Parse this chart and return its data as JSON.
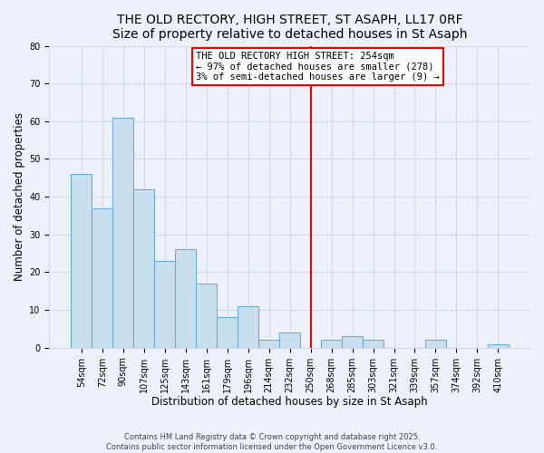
{
  "title_line1": "THE OLD RECTORY, HIGH STREET, ST ASAPH, LL17 0RF",
  "title_line2": "Size of property relative to detached houses in St Asaph",
  "xlabel": "Distribution of detached houses by size in St Asaph",
  "ylabel": "Number of detached properties",
  "bar_labels": [
    "54sqm",
    "72sqm",
    "90sqm",
    "107sqm",
    "125sqm",
    "143sqm",
    "161sqm",
    "179sqm",
    "196sqm",
    "214sqm",
    "232sqm",
    "250sqm",
    "268sqm",
    "285sqm",
    "303sqm",
    "321sqm",
    "339sqm",
    "357sqm",
    "374sqm",
    "392sqm",
    "410sqm"
  ],
  "bar_heights": [
    46,
    37,
    61,
    42,
    23,
    26,
    17,
    8,
    11,
    2,
    4,
    0,
    2,
    3,
    2,
    0,
    0,
    2,
    0,
    0,
    1
  ],
  "bar_color": "#c8dff0",
  "bar_edge_color": "#6aaed6",
  "red_line_index": 11,
  "annotation_title": "THE OLD RECTORY HIGH STREET: 254sqm",
  "annotation_line2": "← 97% of detached houses are smaller (278)",
  "annotation_line3": "3% of semi-detached houses are larger (9) →",
  "ylim": [
    0,
    80
  ],
  "yticks": [
    0,
    10,
    20,
    30,
    40,
    50,
    60,
    70,
    80
  ],
  "background_color": "#edf2fa",
  "grid_color": "#d0d8e8",
  "footer_line1": "Contains HM Land Registry data © Crown copyright and database right 2025.",
  "footer_line2": "Contains public sector information licensed under the Open Government Licence v3.0.",
  "title_fontsize": 10,
  "axis_label_fontsize": 8.5,
  "tick_fontsize": 7,
  "annotation_fontsize": 7.5,
  "footer_fontsize": 6
}
